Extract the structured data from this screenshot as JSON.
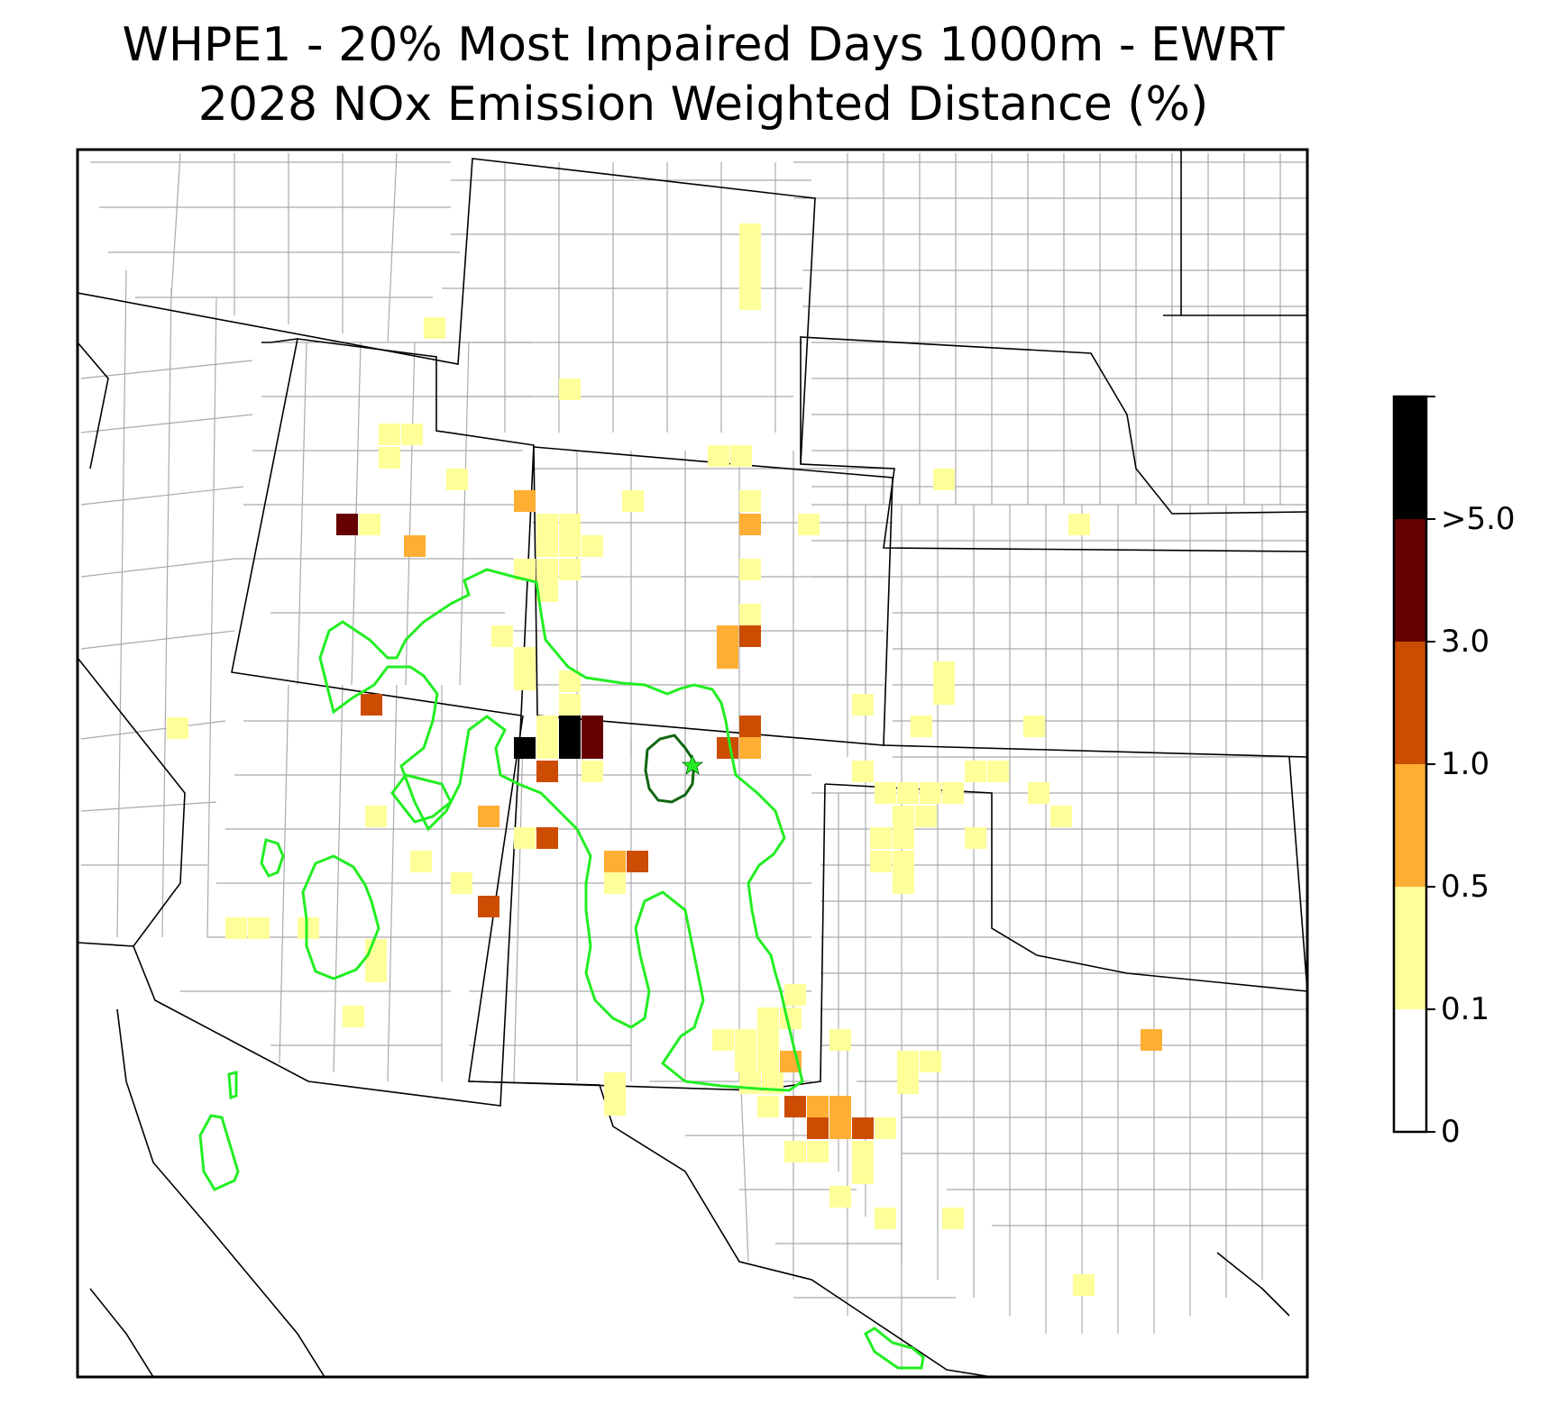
{
  "title": {
    "line1": "WHPE1 - 20% Most Impaired Days 1000m - EWRT",
    "line2": "2028 NOx Emission Weighted Distance (%)"
  },
  "colorbar": {
    "bins": [
      {
        "label": "0",
        "color": "#ffffff"
      },
      {
        "label": "0.1",
        "color": "#ffff99"
      },
      {
        "label": "0.5",
        "color": "#fdae33"
      },
      {
        "label": "1.0",
        "color": "#cc4c02"
      },
      {
        "label": "3.0",
        "color": "#660000"
      },
      {
        "label": ">5.0",
        "color": "#000000"
      }
    ]
  },
  "colors": {
    "state_border": "#000000",
    "county_border": "#aaaaaa",
    "contour_outer": "#22ee22",
    "contour_inner": "#116611",
    "site_marker": "#22ee22"
  },
  "legend_placement": "right"
}
